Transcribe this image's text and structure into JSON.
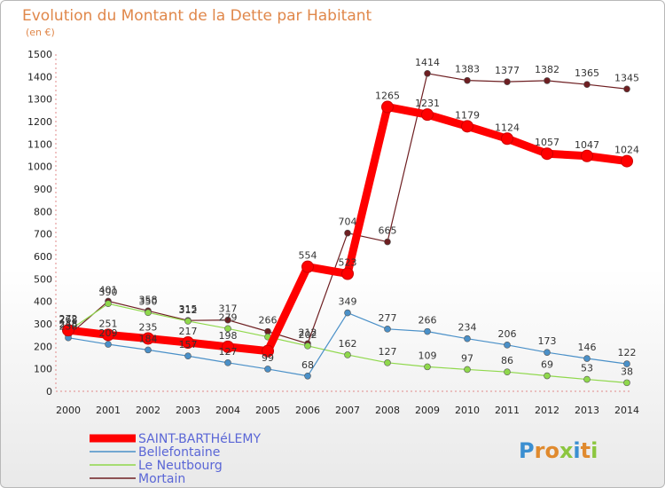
{
  "chart_data": {
    "type": "line",
    "title": "Evolution du Montant de la Dette par Habitant",
    "subtitle": "(en €)",
    "xlabel": "",
    "ylabel": "",
    "x": [
      "2000",
      "2001",
      "2002",
      "2003",
      "2004",
      "2005",
      "2006",
      "2007",
      "2008",
      "2009",
      "2010",
      "2011",
      "2012",
      "2013",
      "2014"
    ],
    "ylim": [
      0,
      1500
    ],
    "yticks": [
      0,
      100,
      200,
      300,
      400,
      500,
      600,
      700,
      800,
      900,
      1000,
      1100,
      1200,
      1300,
      1400,
      1500
    ],
    "grid": false,
    "legend_position": "bottom-left",
    "series": [
      {
        "name": "SAINT-BARTHéLEMY",
        "color": "#ff0000",
        "values": [
          272,
          251,
          235,
          217,
          198,
          179,
          554,
          523,
          1265,
          1231,
          1179,
          1124,
          1057,
          1047,
          1024
        ],
        "labels": [
          "272",
          "251",
          "235",
          "217",
          "198",
          "",
          "554",
          "523",
          "1265",
          "1231",
          "1179",
          "1124",
          "1057",
          "1047",
          "1024"
        ]
      },
      {
        "name": "Bellefontaine",
        "color": "#4a90c8",
        "values": [
          238,
          209,
          184,
          157,
          127,
          99,
          68,
          349,
          277,
          266,
          234,
          206,
          173,
          146,
          122
        ],
        "labels": [
          "238",
          "209",
          "184",
          "157",
          "127",
          "99",
          "68",
          "349",
          "277",
          "266",
          "234",
          "206",
          "173",
          "146",
          "122"
        ]
      },
      {
        "name": "Le Neutbourg",
        "color": "#8fd84b",
        "values": [
          268,
          390,
          350,
          312,
          279,
          242,
          202,
          162,
          127,
          109,
          97,
          86,
          69,
          53,
          38
        ],
        "labels": [
          "268",
          "390",
          "350",
          "312",
          "279",
          "",
          "202",
          "162",
          "127",
          "109",
          "97",
          "86",
          "69",
          "53",
          "38"
        ]
      },
      {
        "name": "Mortain",
        "color": "#6e1f22",
        "values": [
          248,
          401,
          358,
          315,
          317,
          266,
          212,
          704,
          665,
          1414,
          1383,
          1377,
          1382,
          1365,
          1345
        ],
        "labels": [
          "248",
          "401",
          "358",
          "315",
          "317",
          "266",
          "212",
          "704",
          "665",
          "1414",
          "1383",
          "1377",
          "1382",
          "1365",
          "1345"
        ]
      }
    ]
  },
  "brand": {
    "letters": [
      "P",
      "r",
      "o",
      "x",
      "i",
      "t",
      "i"
    ],
    "colors": [
      "#3b8fd1",
      "#e08a2e",
      "#e08a2e",
      "#8cc63f",
      "#3b8fd1",
      "#e08a2e",
      "#8cc63f"
    ]
  }
}
